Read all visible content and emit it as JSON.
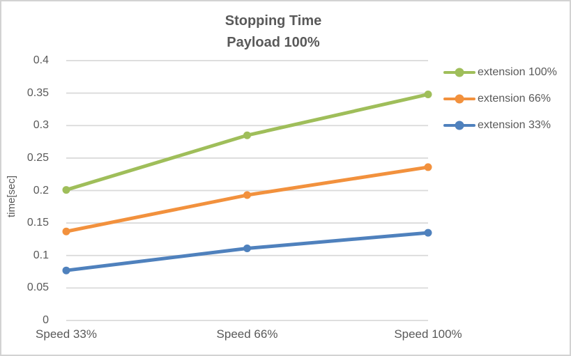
{
  "chart_data": {
    "type": "line",
    "title_lines": [
      "Stopping Time",
      "Payload 100%"
    ],
    "categories": [
      "Speed 33%",
      "Speed 66%",
      "Speed 100%"
    ],
    "series": [
      {
        "name": "extension 100%",
        "color": "#9FBE5A",
        "values": [
          0.201,
          0.285,
          0.348
        ]
      },
      {
        "name": "extension 66%",
        "color": "#F2913D",
        "values": [
          0.137,
          0.193,
          0.236
        ]
      },
      {
        "name": "extension 33%",
        "color": "#4F81BD",
        "values": [
          0.077,
          0.111,
          0.135
        ]
      }
    ],
    "xlabel": "",
    "ylabel": "time[sec]",
    "ylim": [
      0,
      0.4
    ],
    "ytick_step": 0.05,
    "grid": true,
    "legend_position": "right",
    "colors": {
      "text": "#595959",
      "grid": "#D9D9D9",
      "border": "#D2D2D2",
      "background": "#FFFFFF"
    }
  }
}
